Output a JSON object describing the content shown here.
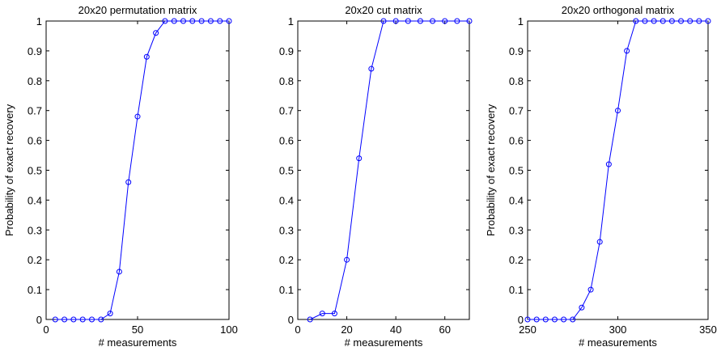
{
  "chart_data": [
    {
      "type": "line",
      "title": "20x20 permutation matrix",
      "xlabel": "# measurements",
      "ylabel": "Probability of exact recovery",
      "xlim": [
        0,
        100
      ],
      "ylim": [
        0,
        1
      ],
      "xticks": [
        0,
        50,
        100
      ],
      "yticks": [
        0,
        0.1,
        0.2,
        0.3,
        0.4,
        0.5,
        0.6,
        0.7,
        0.8,
        0.9,
        1
      ],
      "xtick_labels": [
        "0",
        "50",
        "100"
      ],
      "ytick_labels": [
        "0",
        "0.1",
        "0.2",
        "0.3",
        "0.4",
        "0.5",
        "0.6",
        "0.7",
        "0.8",
        "0.9",
        "1"
      ],
      "grid": false,
      "color": "#0000ff",
      "marker": "circle",
      "x": [
        5,
        10,
        15,
        20,
        25,
        30,
        35,
        40,
        45,
        50,
        55,
        60,
        65,
        70,
        75,
        80,
        85,
        90,
        95,
        100
      ],
      "y": [
        0,
        0,
        0,
        0,
        0,
        0,
        0.02,
        0.16,
        0.46,
        0.68,
        0.88,
        0.96,
        1,
        1,
        1,
        1,
        1,
        1,
        1,
        1
      ]
    },
    {
      "type": "line",
      "title": "20x20 cut matrix",
      "xlabel": "# measurements",
      "ylabel": "",
      "xlim": [
        0,
        70
      ],
      "ylim": [
        0,
        1
      ],
      "xticks": [
        0,
        20,
        40,
        60
      ],
      "yticks": [
        0,
        0.1,
        0.2,
        0.3,
        0.4,
        0.5,
        0.6,
        0.7,
        0.8,
        0.9,
        1
      ],
      "xtick_labels": [
        "0",
        "20",
        "40",
        "60"
      ],
      "ytick_labels": [
        "0",
        "0.1",
        "0.2",
        "0.3",
        "0.4",
        "0.5",
        "0.6",
        "0.7",
        "0.8",
        "0.9",
        "1"
      ],
      "grid": false,
      "color": "#0000ff",
      "marker": "circle",
      "x": [
        5,
        10,
        15,
        20,
        25,
        30,
        35,
        40,
        45,
        50,
        55,
        60,
        65,
        70
      ],
      "y": [
        0,
        0.02,
        0.02,
        0.2,
        0.54,
        0.84,
        1,
        1,
        1,
        1,
        1,
        1,
        1,
        1
      ]
    },
    {
      "type": "line",
      "title": "20x20 orthogonal matrix",
      "xlabel": "# measurements",
      "ylabel": "Probability of exact recovery",
      "xlim": [
        250,
        350
      ],
      "ylim": [
        0,
        1
      ],
      "xticks": [
        250,
        300,
        350
      ],
      "yticks": [
        0,
        0.1,
        0.2,
        0.3,
        0.4,
        0.5,
        0.6,
        0.7,
        0.8,
        0.9,
        1
      ],
      "xtick_labels": [
        "250",
        "300",
        "350"
      ],
      "ytick_labels": [
        "0",
        "0.1",
        "0.2",
        "0.3",
        "0.4",
        "0.5",
        "0.6",
        "0.7",
        "0.8",
        "0.9",
        "1"
      ],
      "grid": false,
      "color": "#0000ff",
      "marker": "circle",
      "x": [
        250,
        255,
        260,
        265,
        270,
        275,
        280,
        285,
        290,
        295,
        300,
        305,
        310,
        315,
        320,
        325,
        330,
        335,
        340,
        345,
        350
      ],
      "y": [
        0,
        0,
        0,
        0,
        0,
        0,
        0.04,
        0.1,
        0.26,
        0.52,
        0.7,
        0.9,
        1,
        1,
        1,
        1,
        1,
        1,
        1,
        1,
        1
      ]
    }
  ]
}
